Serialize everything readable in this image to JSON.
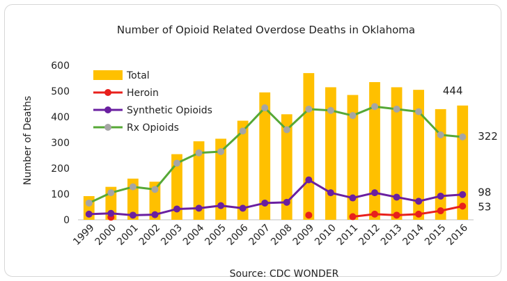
{
  "chart_data": {
    "type": "bar",
    "title": "Number of Opioid Related Overdose Deaths in Oklahoma",
    "ylabel": "Number of Deaths",
    "xlabel": "",
    "source": "Source: CDC WONDER",
    "ylim": [
      0,
      600
    ],
    "yticks": [
      "0",
      "100",
      "200",
      "300",
      "400",
      "500",
      "600"
    ],
    "ytick_values": [
      0,
      100,
      200,
      300,
      400,
      500,
      600
    ],
    "categories": [
      "1999",
      "2000",
      "2001",
      "2002",
      "2003",
      "2004",
      "2005",
      "2006",
      "2007",
      "2008",
      "2009",
      "2010",
      "2011",
      "2012",
      "2013",
      "2014",
      "2015",
      "2016"
    ],
    "legend_position": "top-left",
    "grid": false,
    "series": [
      {
        "name": "Total",
        "kind": "bar",
        "color": "#FFC000",
        "values": [
          92,
          128,
          160,
          148,
          255,
          305,
          315,
          385,
          495,
          410,
          570,
          515,
          485,
          535,
          515,
          505,
          430,
          444
        ]
      },
      {
        "name": "Heroin",
        "kind": "line",
        "color": "#E8201C",
        "line": false,
        "values": [
          null,
          10,
          null,
          null,
          null,
          null,
          null,
          null,
          null,
          null,
          18,
          null,
          12,
          22,
          18,
          22,
          35,
          53
        ]
      },
      {
        "name": "Synthetic Opioids",
        "kind": "line",
        "color": "#6A1FA0",
        "values": [
          22,
          25,
          18,
          20,
          42,
          45,
          55,
          45,
          65,
          68,
          155,
          105,
          85,
          105,
          88,
          72,
          92,
          98
        ]
      },
      {
        "name": "Rx Opioids",
        "kind": "line",
        "color": "#56A836",
        "marker": "#A5A5A5",
        "values": [
          65,
          105,
          128,
          118,
          220,
          260,
          265,
          345,
          435,
          350,
          430,
          425,
          405,
          440,
          430,
          420,
          330,
          322
        ]
      }
    ],
    "annotations": [
      {
        "text": "444",
        "series": "Total",
        "category": "2016"
      },
      {
        "text": "322",
        "series": "Rx Opioids",
        "category": "2016"
      },
      {
        "text": "98",
        "series": "Synthetic Opioids",
        "category": "2016"
      },
      {
        "text": "53",
        "series": "Heroin",
        "category": "2016"
      }
    ]
  }
}
